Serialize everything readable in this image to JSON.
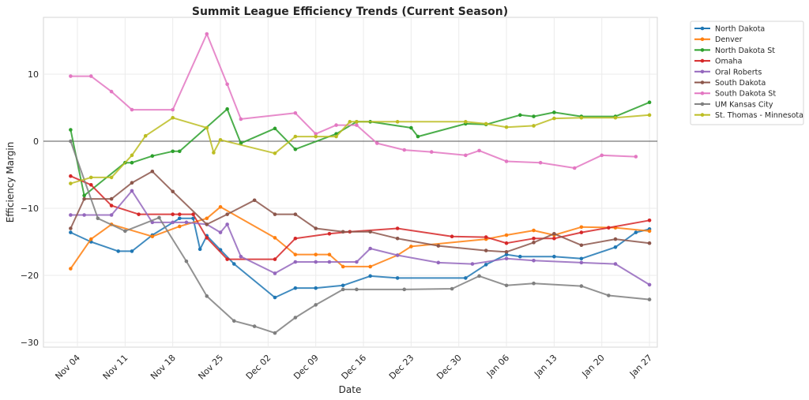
{
  "chart_data": {
    "type": "line",
    "title": "Summit League Efficiency Trends (Current Season)",
    "xlabel": "Date",
    "ylabel": "Efficiency Margin",
    "x_tick_labels": [
      "Nov 04",
      "Nov 11",
      "Nov 18",
      "Nov 25",
      "Dec 02",
      "Dec 09",
      "Dec 16",
      "Dec 23",
      "Dec 30",
      "Jan 06",
      "Jan 13",
      "Jan 20",
      "Jan 27"
    ],
    "y_ticks": [
      10,
      0,
      -10,
      -20,
      -30
    ],
    "y_tick_labels": [
      "10",
      "0",
      "−10",
      "−20",
      "−30"
    ],
    "ylim": [
      -30.6,
      19.2
    ],
    "xlim_days_from_nov04": [
      -5,
      85
    ],
    "zero_line": true,
    "grid": true,
    "legend_position": "outside-top-right",
    "series": [
      {
        "name": "North Dakota",
        "color": "#1f77b4",
        "days": [
          -1,
          2,
          6,
          8,
          11,
          15,
          17,
          18,
          19,
          21,
          23,
          29,
          32,
          35,
          39,
          43,
          47,
          57,
          60,
          63,
          65,
          70,
          74,
          79,
          82,
          84
        ],
        "values": [
          -13.6,
          -15,
          -16.4,
          -16.4,
          -14,
          -11.5,
          -11.5,
          -16.1,
          -14.1,
          -16.2,
          -18.3,
          -23.3,
          -21.9,
          -21.9,
          -21.5,
          -20.1,
          -20.4,
          -20.4,
          -18.4,
          -16.9,
          -17.2,
          -17.2,
          -17.5,
          -15.8,
          -13.6,
          -13.1
        ]
      },
      {
        "name": "Denver",
        "color": "#ff7f0e",
        "days": [
          -1,
          2,
          5,
          11,
          15,
          19,
          21,
          29,
          32,
          35,
          37,
          39,
          43,
          47,
          49,
          60,
          63,
          67,
          70,
          74,
          79,
          84
        ],
        "values": [
          -19,
          -14.6,
          -12.4,
          -14.2,
          -12.7,
          -11.5,
          -9.8,
          -14.4,
          -16.9,
          -16.9,
          -16.9,
          -18.7,
          -18.7,
          -17,
          -15.7,
          -14.6,
          -14,
          -13.3,
          -14,
          -12.8,
          -12.9,
          -13.4
        ]
      },
      {
        "name": "North Dakota St",
        "color": "#2ca02c",
        "days": [
          -1,
          1,
          7,
          8,
          11,
          14,
          15,
          22,
          24,
          29,
          32,
          38,
          41,
          43,
          49,
          50,
          57,
          60,
          65,
          67,
          70,
          74,
          79,
          84
        ],
        "values": [
          1.7,
          -8.1,
          -3.2,
          -3.2,
          -2.2,
          -1.5,
          -1.5,
          4.8,
          -0.3,
          1.9,
          -1.2,
          1.1,
          2.9,
          2.9,
          2,
          0.7,
          2.6,
          2.5,
          3.9,
          3.7,
          4.3,
          3.7,
          3.7,
          5.8
        ]
      },
      {
        "name": "Omaha",
        "color": "#d62728",
        "days": [
          -1,
          2,
          5,
          9,
          14,
          15,
          17,
          19,
          22,
          29,
          32,
          37,
          40,
          47,
          55,
          60,
          63,
          67,
          70,
          74,
          78,
          84
        ],
        "values": [
          -5.2,
          -6.5,
          -9.6,
          -10.9,
          -10.9,
          -10.9,
          -10.9,
          -14.4,
          -17.6,
          -17.6,
          -14.5,
          -13.8,
          -13.5,
          -13,
          -14.2,
          -14.3,
          -15.2,
          -14.5,
          -14.5,
          -13.6,
          -12.9,
          -11.8
        ]
      },
      {
        "name": "Oral Roberts",
        "color": "#9467bd",
        "days": [
          -1,
          1,
          5,
          8,
          11,
          14,
          16,
          19,
          21,
          22,
          24,
          29,
          32,
          35,
          37,
          41,
          43,
          47,
          53,
          58,
          63,
          67,
          74,
          79,
          84
        ],
        "values": [
          -11,
          -11,
          -11,
          -7.4,
          -12.1,
          -12.1,
          -12.1,
          -12.4,
          -13.6,
          -12.4,
          -17.2,
          -19.7,
          -18,
          -18,
          -18,
          -18,
          -16,
          -17,
          -18.1,
          -18.3,
          -17.5,
          -17.8,
          -18.1,
          -18.3,
          -21.4
        ]
      },
      {
        "name": "South Dakota",
        "color": "#8c564b",
        "days": [
          -1,
          1,
          5,
          8,
          11,
          14,
          19,
          22,
          26,
          29,
          32,
          35,
          39,
          43,
          47,
          53,
          60,
          63,
          67,
          70,
          74,
          79,
          84
        ],
        "values": [
          -13,
          -8.6,
          -8.6,
          -6.2,
          -4.5,
          -7.5,
          -12.4,
          -10.9,
          -8.8,
          -10.9,
          -10.9,
          -13,
          -13.5,
          -13.5,
          -14.5,
          -15.6,
          -16.3,
          -16.5,
          -15.1,
          -13.8,
          -15.5,
          -14.6,
          -15.2
        ]
      },
      {
        "name": "South Dakota St",
        "color": "#e377c2",
        "days": [
          -1,
          2,
          5,
          8,
          14,
          19,
          22,
          24,
          32,
          35,
          38,
          41,
          44,
          48,
          52,
          57,
          59,
          63,
          68,
          73,
          77,
          82
        ],
        "values": [
          9.7,
          9.7,
          7.4,
          4.7,
          4.7,
          16,
          8.5,
          3.3,
          4.2,
          1.1,
          2.4,
          2.4,
          -0.3,
          -1.3,
          -1.6,
          -2.1,
          -1.4,
          -3,
          -3.2,
          -4,
          -2.1,
          -2.3
        ]
      },
      {
        "name": "UM Kansas City",
        "color": "#7f7f7f",
        "days": [
          -1,
          3,
          7,
          12,
          16,
          19,
          23,
          26,
          29,
          32,
          35,
          39,
          41,
          48,
          55,
          59,
          63,
          67,
          74,
          78,
          84
        ],
        "values": [
          0,
          -11.5,
          -13.4,
          -11.4,
          -17.9,
          -23.1,
          -26.8,
          -27.6,
          -28.6,
          -26.3,
          -24.4,
          -22.1,
          -22.1,
          -22.1,
          -22,
          -20.1,
          -21.5,
          -21.2,
          -21.6,
          -23,
          -23.6
        ]
      },
      {
        "name": "St. Thomas - Minnesota",
        "color": "#bcbd22",
        "days": [
          -1,
          2,
          5,
          8,
          10,
          14,
          19,
          20,
          21,
          29,
          32,
          35,
          38,
          40,
          41,
          47,
          57,
          60,
          63,
          67,
          70,
          74,
          79,
          84
        ],
        "values": [
          -6.3,
          -5.4,
          -5.4,
          -2.1,
          0.8,
          3.5,
          2,
          -1.7,
          0.2,
          -1.8,
          0.7,
          0.7,
          0.7,
          2.9,
          2.9,
          2.9,
          2.9,
          2.6,
          2.1,
          2.3,
          3.4,
          3.5,
          3.5,
          3.9
        ]
      }
    ]
  }
}
